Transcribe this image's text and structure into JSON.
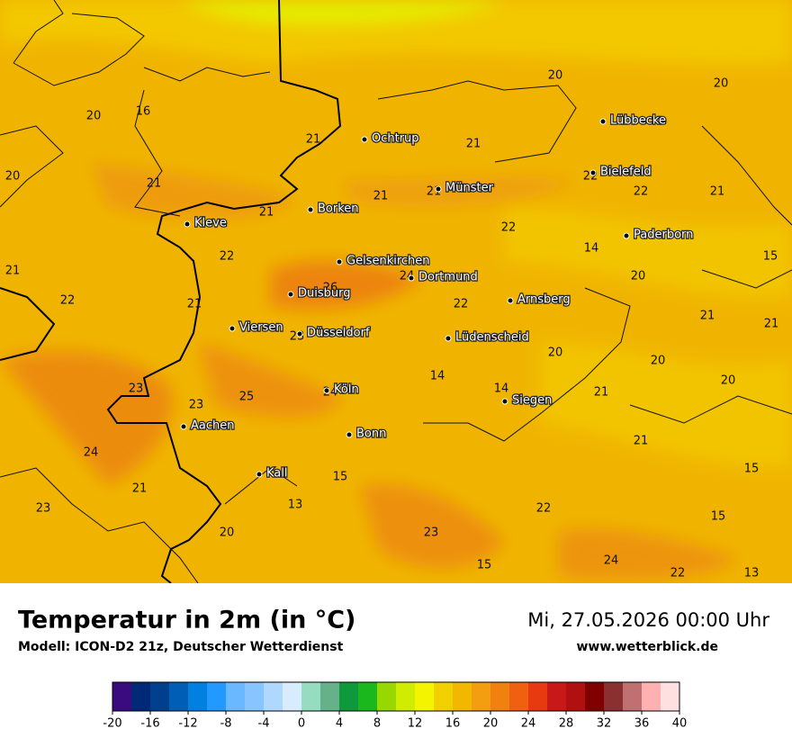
{
  "map": {
    "cities": [
      "Lübbecke",
      "Ochtrup",
      "Bielefeld",
      "Münster",
      "Borken",
      "Kleve",
      "Paderborn",
      "Gelsenkirchen",
      "Dortmund",
      "Duisburg",
      "Arnsberg",
      "Viersen",
      "Düsseldorf",
      "Lüdenscheid",
      "Köln",
      "Siegen",
      "Aachen",
      "Bonn",
      "Kall"
    ],
    "temperature_labels": [
      20,
      20,
      16,
      20,
      21,
      21,
      20,
      21,
      22,
      21,
      21,
      22,
      21,
      21,
      22,
      14,
      22,
      15,
      21,
      24,
      20,
      26,
      22,
      21,
      22,
      21,
      21,
      23,
      20,
      20,
      14,
      20,
      23,
      14,
      24,
      21,
      25,
      23,
      21,
      24,
      15,
      15,
      21,
      13,
      23,
      22,
      15,
      20,
      23,
      15,
      24,
      22,
      13
    ]
  },
  "footer": {
    "title": "Temperatur in 2m (in °C)",
    "model": "Modell: ICON-D2 21z, Deutscher Wetterdienst",
    "datetime": "Mi, 27.05.2026 00:00 Uhr",
    "website": "www.wetterblick.de"
  },
  "legend": {
    "range": [
      -20,
      40
    ],
    "ticks": [
      -20,
      -16,
      -12,
      -8,
      -4,
      0,
      4,
      8,
      12,
      16,
      20,
      24,
      28,
      32,
      36,
      40
    ],
    "colors": [
      "#3a0a7f",
      "#002a78",
      "#003f8c",
      "#005fb5",
      "#0080e0",
      "#2299ff",
      "#6ab8ff",
      "#88c4ff",
      "#b0d8ff",
      "#d8ecff",
      "#96dcc0",
      "#66b08a",
      "#0e9a3c",
      "#1ab81c",
      "#98d800",
      "#d0ec00",
      "#f4f400",
      "#f2d000",
      "#f2b800",
      "#f29e10",
      "#f08010",
      "#f06010",
      "#e83a10",
      "#c81818",
      "#b01010",
      "#800000",
      "#8a3030",
      "#c07070",
      "#ffb0b0",
      "#ffe0e0"
    ]
  }
}
